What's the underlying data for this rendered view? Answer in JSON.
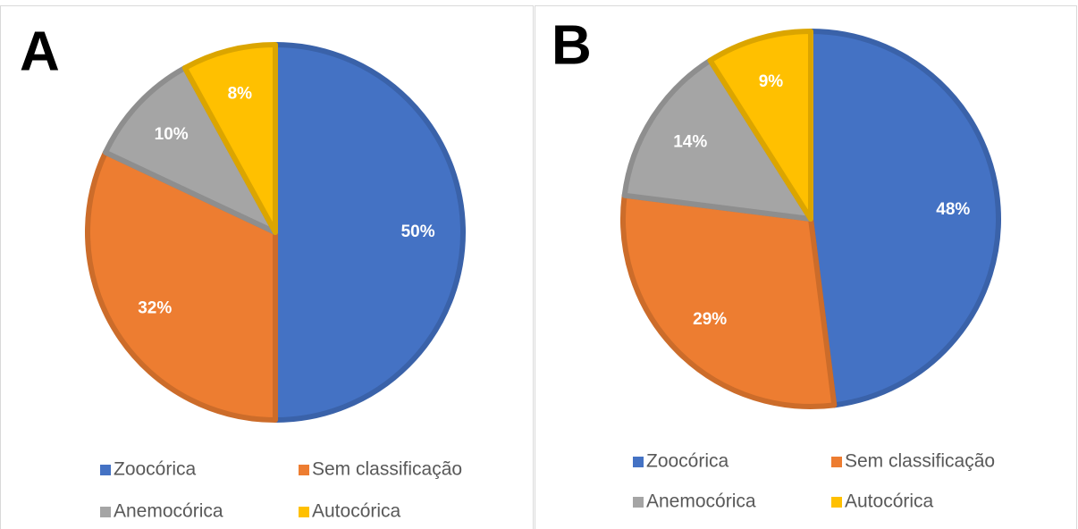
{
  "chart_data": [
    {
      "type": "pie",
      "panel": "A",
      "categories": [
        "Zoocórica",
        "Sem classificação",
        "Anemocórica",
        "Autocórica"
      ],
      "values": [
        50,
        32,
        10,
        8
      ],
      "value_labels": [
        "50%",
        "32%",
        "10%",
        "8%"
      ],
      "colors": [
        "#4472c4",
        "#ed7d31",
        "#a5a5a5",
        "#ffc000"
      ]
    },
    {
      "type": "pie",
      "panel": "B",
      "categories": [
        "Zoocórica",
        "Sem classificação",
        "Anemocórica",
        "Autocórica"
      ],
      "values": [
        48,
        29,
        14,
        9
      ],
      "value_labels": [
        "48%",
        "29%",
        "14%",
        "9%"
      ],
      "colors": [
        "#4472c4",
        "#ed7d31",
        "#a5a5a5",
        "#ffc000"
      ]
    }
  ]
}
